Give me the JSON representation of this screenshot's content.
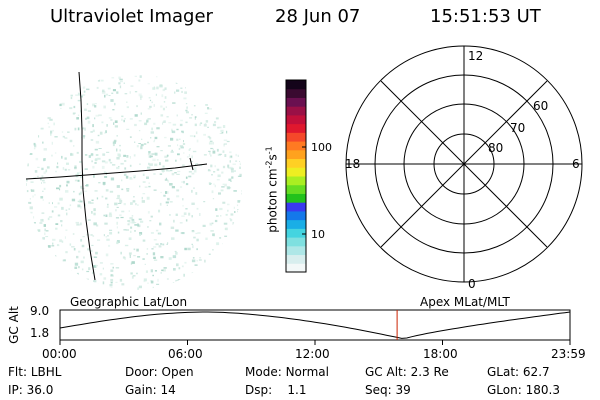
{
  "header": {
    "instrument": "Ultraviolet Imager",
    "date": "28 Jun 07",
    "time": "15:51:53 UT"
  },
  "colorbar": {
    "unit_text": "photon cm",
    "unit_exp1": "-2",
    "unit_s": "s",
    "unit_exp2": "-1",
    "ticks": [
      "100",
      "10"
    ],
    "colors": [
      "#f3f8f8",
      "#d8eeee",
      "#aee7e7",
      "#7fe0e0",
      "#44d4e0",
      "#1aaee6",
      "#1478ea",
      "#3a3af0",
      "#22c21c",
      "#66dd22",
      "#aaee22",
      "#eeee22",
      "#ffd024",
      "#ffa21e",
      "#ff7a22",
      "#f5482a",
      "#e0182e",
      "#c2103a",
      "#9a1046",
      "#6a1050",
      "#3a0a30",
      "#14041a"
    ]
  },
  "polar_plot": {
    "mlt_labels": {
      "top": "12",
      "right": "6",
      "bottom": "0",
      "left": "18"
    },
    "lat_labels": [
      "60",
      "70",
      "80"
    ]
  },
  "timeline": {
    "y_label": "GC Alt",
    "y_ticks": [
      "9.0",
      "1.8"
    ],
    "left_title": "Geographic Lat/Lon",
    "right_title": "Apex MLat/MLT",
    "x_ticks": [
      "00:00",
      "06:00",
      "12:00",
      "18:00",
      "23:59"
    ],
    "marker_time": "15:51:53"
  },
  "status": {
    "flt_label": "Flt:",
    "flt_value": "LBHL",
    "ip_label": "IP:",
    "ip_value": "36.0",
    "door_label": "Door:",
    "door_value": "Open",
    "gain_label": "Gain:",
    "gain_value": "14",
    "mode_label": "Mode:",
    "mode_value": "Normal",
    "dsp_label": "Dsp:",
    "dsp_value": "1.1",
    "gcalt_label": "GC Alt:",
    "gcalt_value": "2.3 Re",
    "seq_label": "Seq:",
    "seq_value": "39",
    "glat_label": "GLat:",
    "glat_value": "62.7",
    "glon_label": "GLon:",
    "glon_value": "180.3"
  },
  "colors": {
    "marker": "#cc2200",
    "aurora_speckle": "#bfe0d6"
  }
}
